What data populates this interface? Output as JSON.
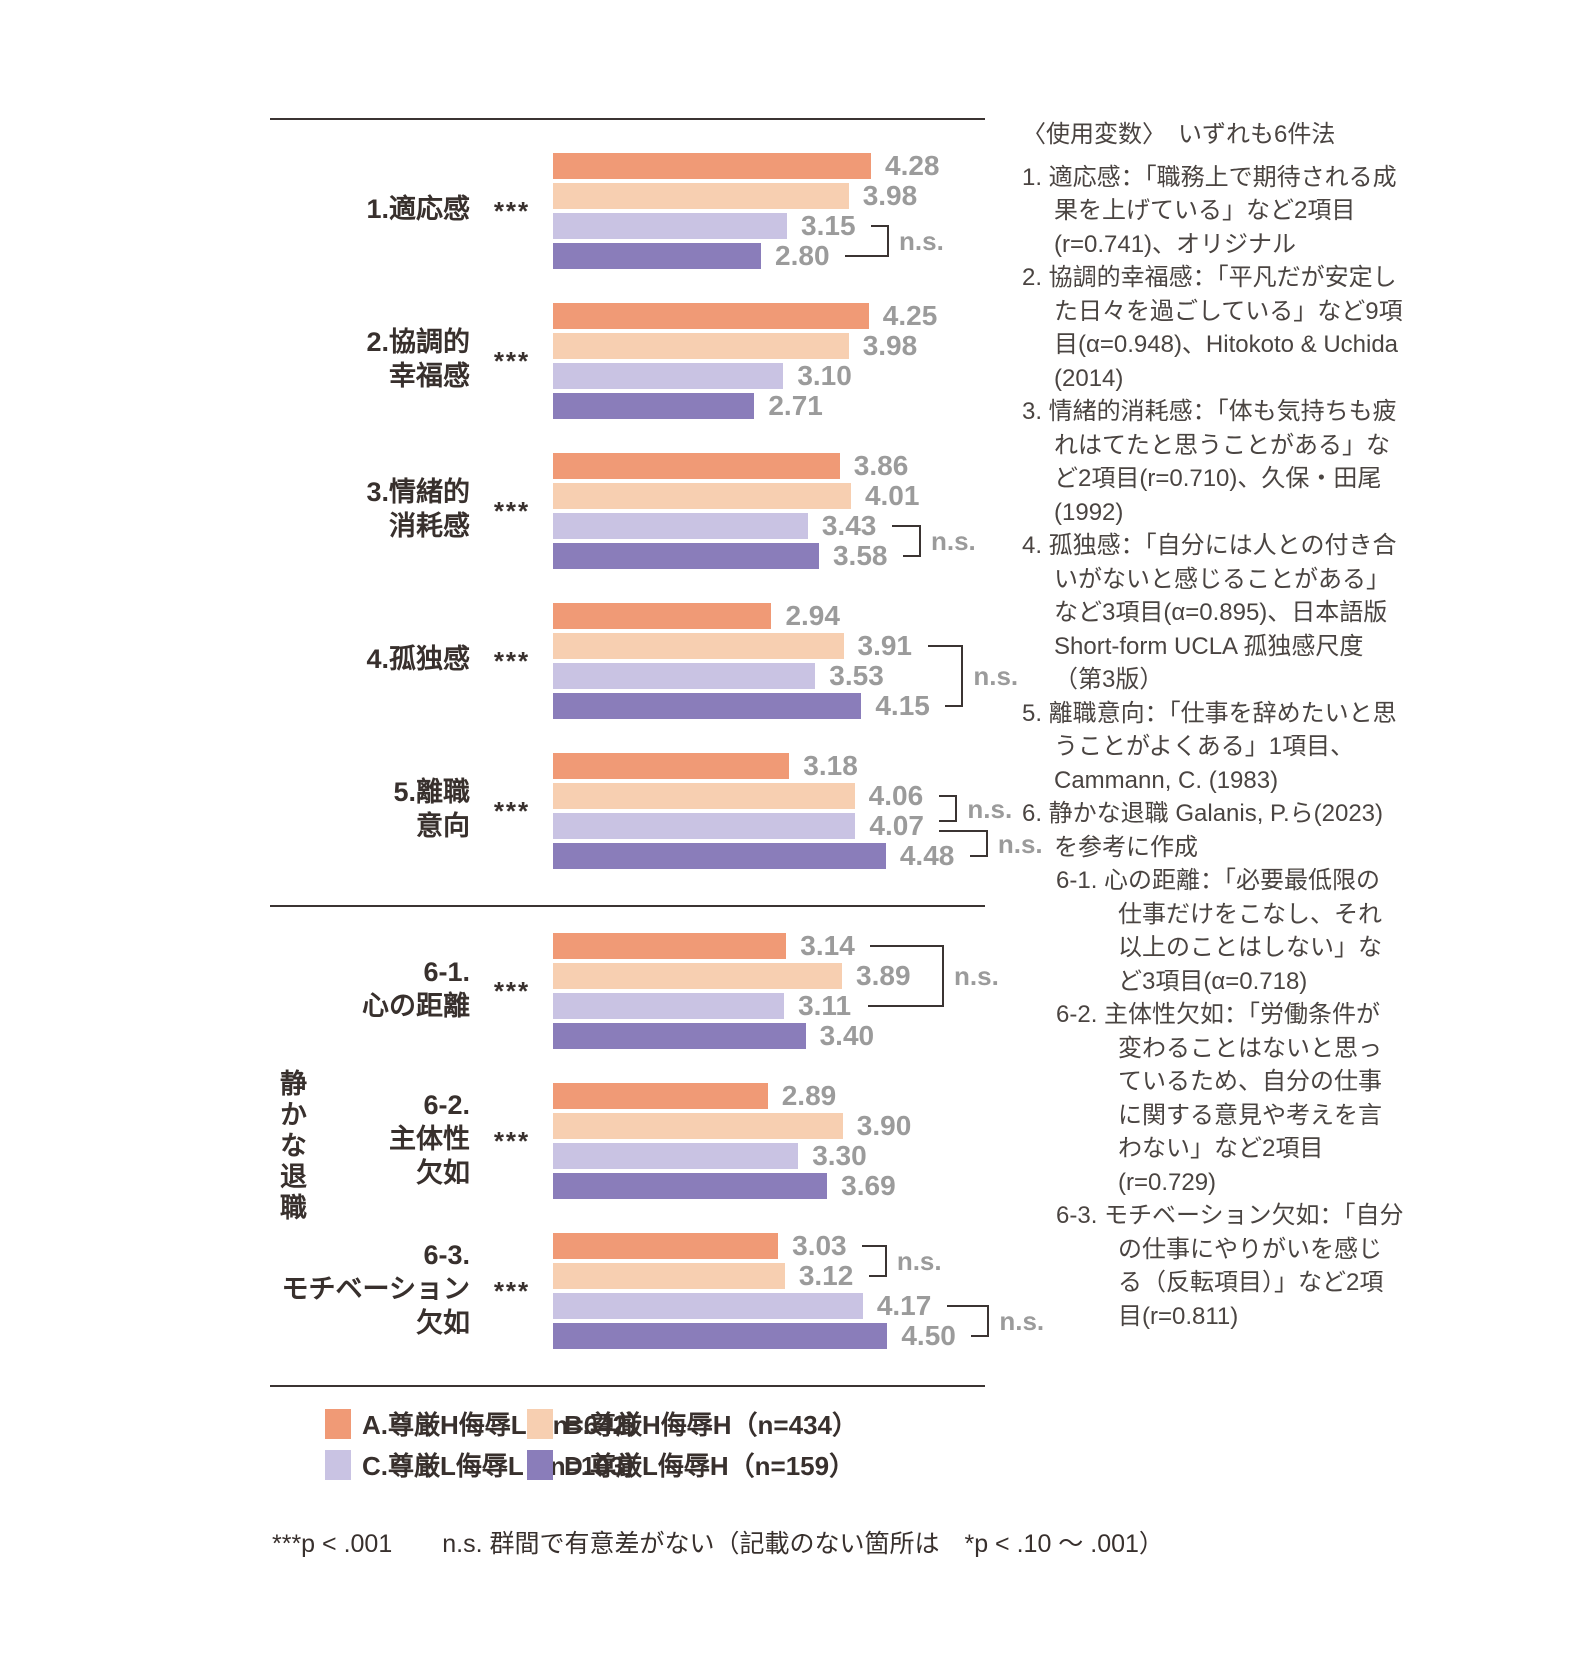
{
  "chart_data": {
    "type": "bar",
    "orientation": "horizontal",
    "value_axis": {
      "min": 0,
      "scale_note": "6件法"
    },
    "series": [
      {
        "name": "A.尊厳H侮辱L（n=642）",
        "color": "#F09A76"
      },
      {
        "name": "B.尊厳H侮辱H（n=434）",
        "color": "#F7CFB1"
      },
      {
        "name": "C.尊厳L侮辱L（n=103）",
        "color": "#C9C3E3"
      },
      {
        "name": "D.尊厳L侮辱H（n=159）",
        "color": "#8A7DBA"
      }
    ],
    "groups": [
      {
        "label_lines": [
          "1.適応感"
        ],
        "sig": "***",
        "values": [
          4.28,
          3.98,
          3.15,
          2.8
        ],
        "ns_brackets": [
          {
            "rows": [
              2,
              3
            ],
            "label": "n.s."
          }
        ]
      },
      {
        "label_lines": [
          "2.協調的",
          "幸福感"
        ],
        "sig": "***",
        "values": [
          4.25,
          3.98,
          3.1,
          2.71
        ],
        "ns_brackets": []
      },
      {
        "label_lines": [
          "3.情緒的",
          "消耗感"
        ],
        "sig": "***",
        "values": [
          3.86,
          4.01,
          3.43,
          3.58
        ],
        "ns_brackets": [
          {
            "rows": [
              2,
              3
            ],
            "label": "n.s."
          }
        ]
      },
      {
        "label_lines": [
          "4.孤独感"
        ],
        "sig": "***",
        "values": [
          2.94,
          3.91,
          3.53,
          4.15
        ],
        "ns_brackets": [
          {
            "rows": [
              1,
              3
            ],
            "label": "n.s."
          }
        ]
      },
      {
        "label_lines": [
          "5.離職",
          "意向"
        ],
        "sig": "***",
        "values": [
          3.18,
          4.06,
          4.07,
          4.48
        ],
        "ns_brackets": [
          {
            "rows": [
              1,
              2
            ],
            "label": "n.s."
          },
          {
            "rows": [
              2,
              3
            ],
            "label": "n.s."
          }
        ]
      },
      {
        "label_lines": [
          "6-1.",
          "心の距離"
        ],
        "sig": "***",
        "values": [
          3.14,
          3.89,
          3.11,
          3.4
        ],
        "ns_brackets": [
          {
            "rows": [
              0,
              2
            ],
            "label": "n.s."
          }
        ]
      },
      {
        "label_lines": [
          "6-2.",
          "主体性",
          "欠如"
        ],
        "sig": "***",
        "values": [
          2.89,
          3.9,
          3.3,
          3.69
        ],
        "ns_brackets": []
      },
      {
        "label_lines": [
          "6-3.",
          "モチベーション",
          "欠如"
        ],
        "sig": "***",
        "values": [
          3.03,
          3.12,
          4.17,
          4.5
        ],
        "ns_brackets": [
          {
            "rows": [
              0,
              1
            ],
            "label": "n.s."
          },
          {
            "rows": [
              2,
              3
            ],
            "label": "n.s."
          }
        ]
      }
    ],
    "section_label": "静かな退職",
    "section_group_indexes": [
      5,
      6,
      7
    ],
    "footnote": "***p < .001　　n.s. 群間で有意差がない（記載のない箇所は　*p < .10 ～ .001）"
  },
  "notes": {
    "heading": "〈使用変数〉　いずれも6件法",
    "items": [
      {
        "text": "1. 適応感：「職務上で期待される成果を上げている」など2項目(r=0.741)、オリジナル"
      },
      {
        "text": "2. 協調的幸福感：「平凡だが安定した日々を過ごしている」など9項目(α=0.948)、Hitokoto & Uchida (2014)"
      },
      {
        "text": "3. 情緒的消耗感：「体も気持ちも疲れはてたと思うことがある」など2項目(r=0.710)、久保・田尾 (1992)"
      },
      {
        "text": "4. 孤独感：「自分には人との付き合いがないと感じることがある」など3項目(α=0.895)、日本語版 Short-form UCLA 孤独感尺度（第3版）"
      },
      {
        "text": "5. 離職意向：「仕事を辞めたいと思うことがよくある」1項目、Cammann, C. (1983)"
      },
      {
        "text": "6. 静かな退職 Galanis, P.ら(2023)を参考に作成",
        "subs": [
          "6-1. 心の距離：「必要最低限の仕事だけをこなし、それ以上のことはしない」など3項目(α=0.718)",
          "6-2. 主体性欠如：「労働条件が変わることはないと思っているため、自分の仕事に関する意見や考えを言わない」など2項目(r=0.729)",
          "6-3. モチベーション欠如：「自分の仕事にやりがいを感じる（反転項目）」など2項目(r=0.811)"
        ]
      }
    ]
  }
}
